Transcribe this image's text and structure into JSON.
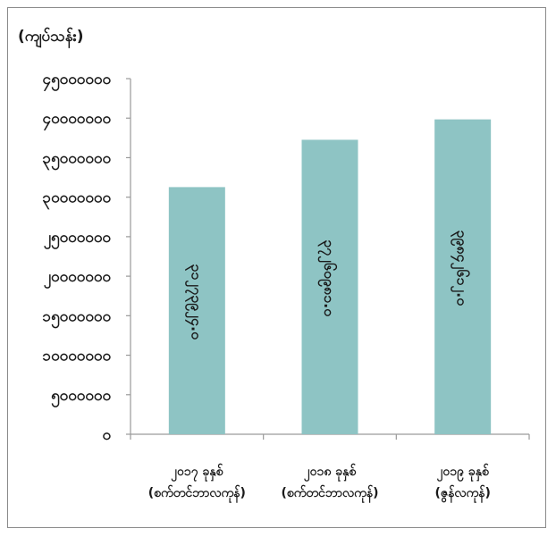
{
  "chart_data": {
    "type": "bar",
    "unit_label": "(ကျပ်သန်း)",
    "y_ticks": [
      "၄၅၀၀၀၀၀၀",
      "၄၀၀၀၀၀၀၀",
      "၃၅၀၀၀၀၀၀",
      "၃၀၀၀၀၀၀၀",
      "၂၅၀၀၀၀၀၀",
      "၂၀၀၀၀၀၀၀",
      "၁၅၀၀၀၀၀၀",
      "၁၀၀၀၀၀၀၀",
      "၅၀၀၀၀၀၀",
      "၀"
    ],
    "y_tick_values": [
      45000000,
      40000000,
      35000000,
      30000000,
      25000000,
      20000000,
      15000000,
      10000000,
      5000000,
      0
    ],
    "ylim": [
      0,
      45000000
    ],
    "grid": false,
    "categories": [
      [
        "၂၀၁၇ ခုနှစ်",
        "(စက်တင်ဘာလကုန်)"
      ],
      [
        "၂၀၁၈ ခုနှစ်",
        "(စက်တင်ဘာလကုန်)"
      ],
      [
        "၂၀၁၉ ခုနှစ်",
        "(ဇွန်လကုန်)"
      ]
    ],
    "values": [
      31273924,
      37260981,
      39842612
    ],
    "value_labels": [
      "၃၁၂၇၃၉၂၄.၀",
      "၃၇၂၆၀၉၈၁.၀",
      "၃၉၈၄၂၆၁၂.၀"
    ],
    "bar_color": "#8ec4c4"
  }
}
